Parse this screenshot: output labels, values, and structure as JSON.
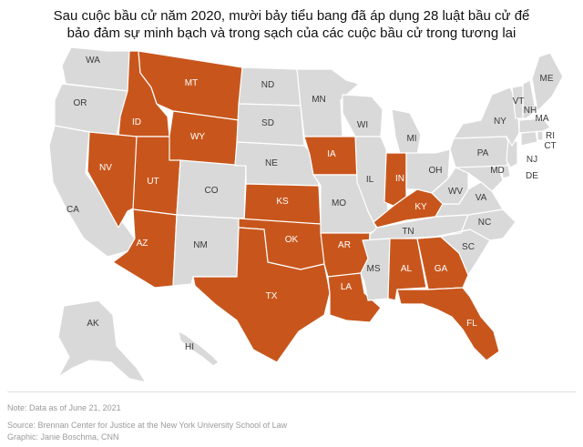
{
  "title": {
    "line1": "Sau cuộc bầu cử năm 2020, mười bảy tiểu bang đã áp dụng 28 luật bầu cử để",
    "line2": "bảo đảm sự minh bạch và trong sạch của các cuộc bầu cử trong tương lai"
  },
  "colors": {
    "highlighted": "#c8561c",
    "other": "#d9d9d9",
    "border": "#ffffff"
  },
  "highlighted_states": [
    "MT",
    "ID",
    "WY",
    "NV",
    "UT",
    "AZ",
    "KS",
    "OK",
    "TX",
    "IA",
    "AR",
    "LA",
    "IN",
    "KY",
    "AL",
    "GA",
    "FL"
  ],
  "labels": {
    "WA": "WA",
    "OR": "OR",
    "CA": "CA",
    "ID": "ID",
    "MT": "MT",
    "WY": "WY",
    "NV": "NV",
    "UT": "UT",
    "CO": "CO",
    "AZ": "AZ",
    "NM": "NM",
    "ND": "ND",
    "SD": "SD",
    "NE": "NE",
    "KS": "KS",
    "OK": "OK",
    "TX": "TX",
    "MN": "MN",
    "IA": "IA",
    "MO": "MO",
    "AR": "AR",
    "LA": "LA",
    "WI": "WI",
    "IL": "IL",
    "MI": "MI",
    "IN": "IN",
    "OH": "OH",
    "KY": "KY",
    "TN": "TN",
    "MS": "MS",
    "AL": "AL",
    "GA": "GA",
    "FL": "FL",
    "SC": "SC",
    "NC": "NC",
    "VA": "VA",
    "WV": "WV",
    "PA": "PA",
    "NY": "NY",
    "VT": "VT",
    "NH": "NH",
    "ME": "ME",
    "MA": "MA",
    "RI": "RI",
    "CT": "CT",
    "NJ": "NJ",
    "DE": "DE",
    "MD": "MD",
    "AK": "AK",
    "HI": "HI"
  },
  "footer": {
    "note": "Note: Data as of June 21, 2021",
    "source": "Source: Brennan Center for Justice at the New York University School of Law",
    "graphic": "Graphic: Janie Boschma, CNN"
  }
}
